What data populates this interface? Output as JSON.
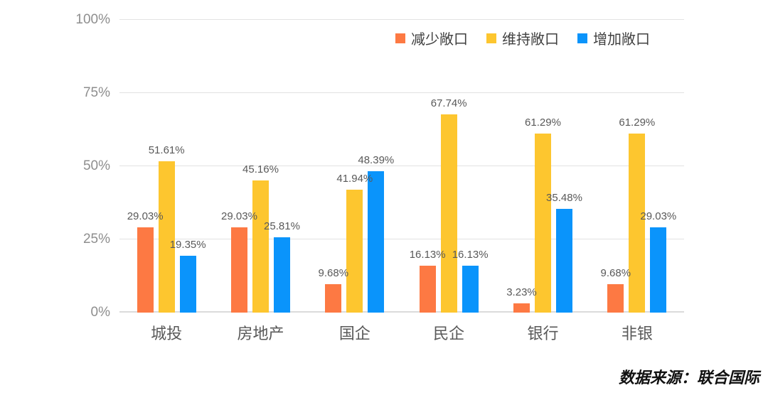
{
  "chart_data": {
    "type": "bar",
    "title": "",
    "categories": [
      "城投",
      "房地产",
      "国企",
      "民企",
      "银行",
      "非银"
    ],
    "series": [
      {
        "name": "减少敞口",
        "color": "#FD7943",
        "values": [
          29.03,
          29.03,
          9.68,
          16.13,
          3.23,
          9.68
        ]
      },
      {
        "name": "维持敞口",
        "color": "#FDC62F",
        "values": [
          51.61,
          45.16,
          41.94,
          67.74,
          61.29,
          61.29
        ]
      },
      {
        "name": "增加敞口",
        "color": "#0A94FB",
        "values": [
          19.35,
          25.81,
          48.39,
          16.13,
          35.48,
          29.03
        ]
      }
    ],
    "ylim": [
      0,
      100
    ],
    "yticks": [
      0,
      25,
      50,
      75,
      100
    ],
    "ytick_suffix": "%",
    "value_suffix": "%",
    "value_decimals": 2,
    "grid": true,
    "data_labels": true,
    "legend_position": "top-right"
  },
  "footer": {
    "source_note": "数据来源：联合国际"
  }
}
